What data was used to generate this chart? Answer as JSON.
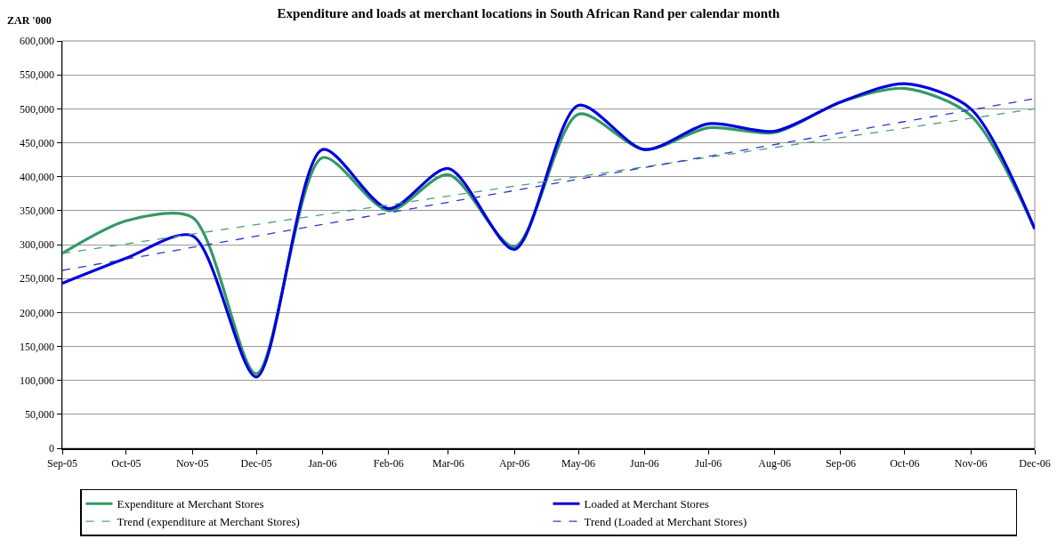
{
  "chart_data": {
    "type": "line",
    "title": "Expenditure and loads at merchant locations in South African Rand per calendar month",
    "ylabel": "ZAR '000",
    "x": [
      "2005-09",
      "2005-10",
      "2005-11",
      "2005-12",
      "2006-01",
      "2006-02",
      "2006-03",
      "2006-04",
      "2006-05",
      "2006-06",
      "2006-07",
      "2006-08",
      "2006-09",
      "2006-10",
      "2006-11",
      "2006-12"
    ],
    "series": [
      {
        "name": "Expenditure at Merchant Stores",
        "color": "#339966",
        "values": [
          287000,
          335000,
          340000,
          110000,
          428000,
          350000,
          403000,
          297000,
          492000,
          440000,
          472000,
          465000,
          510000,
          530000,
          490000,
          323000
        ]
      },
      {
        "name": "Loaded at Merchant Stores",
        "color": "#0000dd",
        "values": [
          243000,
          280000,
          313000,
          105000,
          440000,
          353000,
          412000,
          293000,
          505000,
          440000,
          478000,
          467000,
          510000,
          537000,
          500000,
          323000
        ]
      },
      {
        "name": "Trend (expenditure at Merchant Stores)",
        "color": "#4f9f7a",
        "line_style": "dashed",
        "x": [
          "2005-09",
          "2006-12"
        ],
        "values": [
          287000,
          500000
        ]
      },
      {
        "name": "Trend (Loaded at Merchant Stores)",
        "color": "#3333cc",
        "line_style": "dashed",
        "x": [
          "2005-09",
          "2006-12"
        ],
        "values": [
          262000,
          515000
        ]
      }
    ],
    "xlim": [
      "2005-09",
      "2006-12"
    ],
    "xticks": [
      {
        "value": "2005-09",
        "label": "Sep-05"
      },
      {
        "value": "2005-10",
        "label": "Oct-05"
      },
      {
        "value": "2005-11",
        "label": "Nov-05"
      },
      {
        "value": "2005-12",
        "label": "Dec-05"
      },
      {
        "value": "2006-01",
        "label": "Jan-06"
      },
      {
        "value": "2006-02",
        "label": "Feb-06"
      },
      {
        "value": "2006-03",
        "label": "Mar-06"
      },
      {
        "value": "2006-04",
        "label": "Apr-06"
      },
      {
        "value": "2006-05",
        "label": "May-06"
      },
      {
        "value": "2006-06",
        "label": "Jun-06"
      },
      {
        "value": "2006-07",
        "label": "Jul-06"
      },
      {
        "value": "2006-08",
        "label": "Aug-06"
      },
      {
        "value": "2006-09",
        "label": "Sep-06"
      },
      {
        "value": "2006-10",
        "label": "Oct-06"
      },
      {
        "value": "2006-11",
        "label": "Nov-06"
      },
      {
        "value": "2006-12",
        "label": "Dec-06"
      }
    ],
    "ylim": [
      0,
      600000
    ],
    "yticks": [
      {
        "value": 0,
        "label": "0"
      },
      {
        "value": 50000,
        "label": "50,000"
      },
      {
        "value": 100000,
        "label": "100,000"
      },
      {
        "value": 150000,
        "label": "150,000"
      },
      {
        "value": 200000,
        "label": "200,000"
      },
      {
        "value": 250000,
        "label": "250,000"
      },
      {
        "value": 300000,
        "label": "300,000"
      },
      {
        "value": 350000,
        "label": "350,000"
      },
      {
        "value": 400000,
        "label": "400,000"
      },
      {
        "value": 450000,
        "label": "450,000"
      },
      {
        "value": 500000,
        "label": "500,000"
      },
      {
        "value": 550000,
        "label": "550,000"
      },
      {
        "value": 600000,
        "label": "600,000"
      }
    ],
    "grid": "y",
    "legend": "bottom",
    "marker": "none",
    "line_style": "solid"
  }
}
